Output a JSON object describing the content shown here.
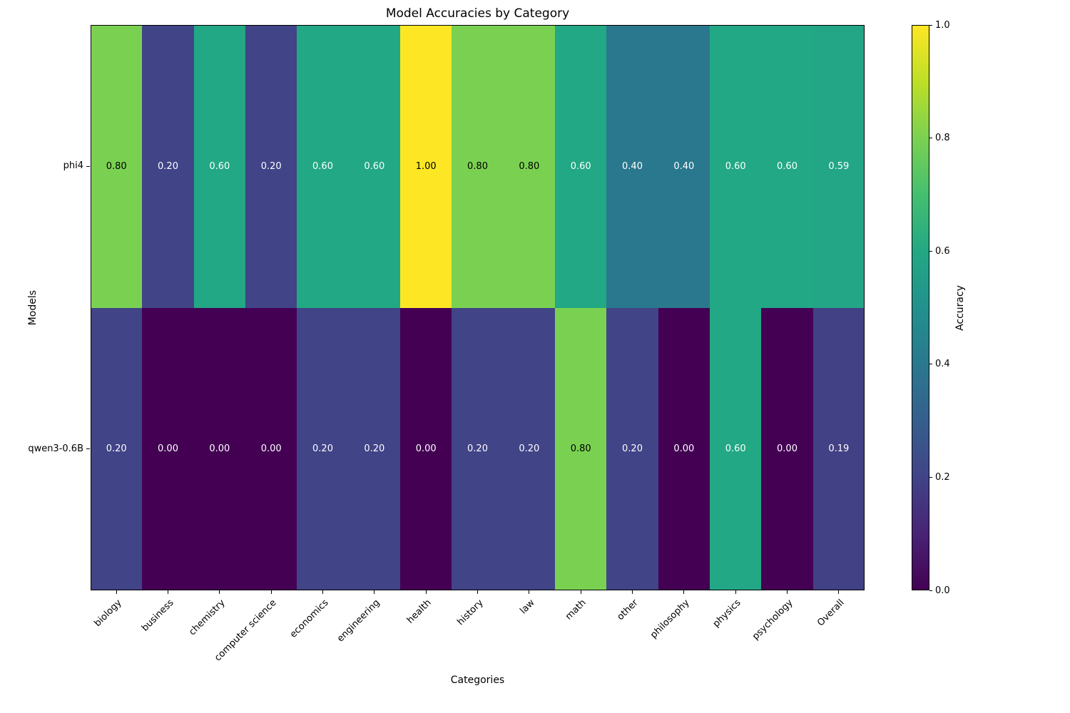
{
  "chart_data": {
    "type": "heatmap",
    "title": "Model Accuracies by Category",
    "xlabel": "Categories",
    "ylabel": "Models",
    "categories": [
      "biology",
      "business",
      "chemistry",
      "computer science",
      "economics",
      "engineering",
      "health",
      "history",
      "law",
      "math",
      "other",
      "philosophy",
      "physics",
      "psychology",
      "Overall"
    ],
    "models": [
      "phi4",
      "qwen3-0.6B"
    ],
    "values": [
      [
        0.8,
        0.2,
        0.6,
        0.2,
        0.6,
        0.6,
        1.0,
        0.8,
        0.8,
        0.6,
        0.4,
        0.4,
        0.6,
        0.6,
        0.59
      ],
      [
        0.2,
        0.0,
        0.0,
        0.0,
        0.2,
        0.2,
        0.0,
        0.2,
        0.2,
        0.8,
        0.2,
        0.0,
        0.6,
        0.0,
        0.19
      ]
    ],
    "value_decimals": 2,
    "colorbar": {
      "label": "Accuracy",
      "ticks": [
        0.0,
        0.2,
        0.4,
        0.6,
        0.8,
        1.0
      ],
      "range": [
        0,
        1
      ]
    },
    "colormap": {
      "name": "viridis",
      "anchors": [
        "#440154",
        "#482475",
        "#414487",
        "#355f8d",
        "#2a788e",
        "#21918c",
        "#22a884",
        "#44bf70",
        "#7ad151",
        "#bddf26",
        "#fde725"
      ]
    },
    "legend_position": "right-colorbar",
    "grid": false
  }
}
